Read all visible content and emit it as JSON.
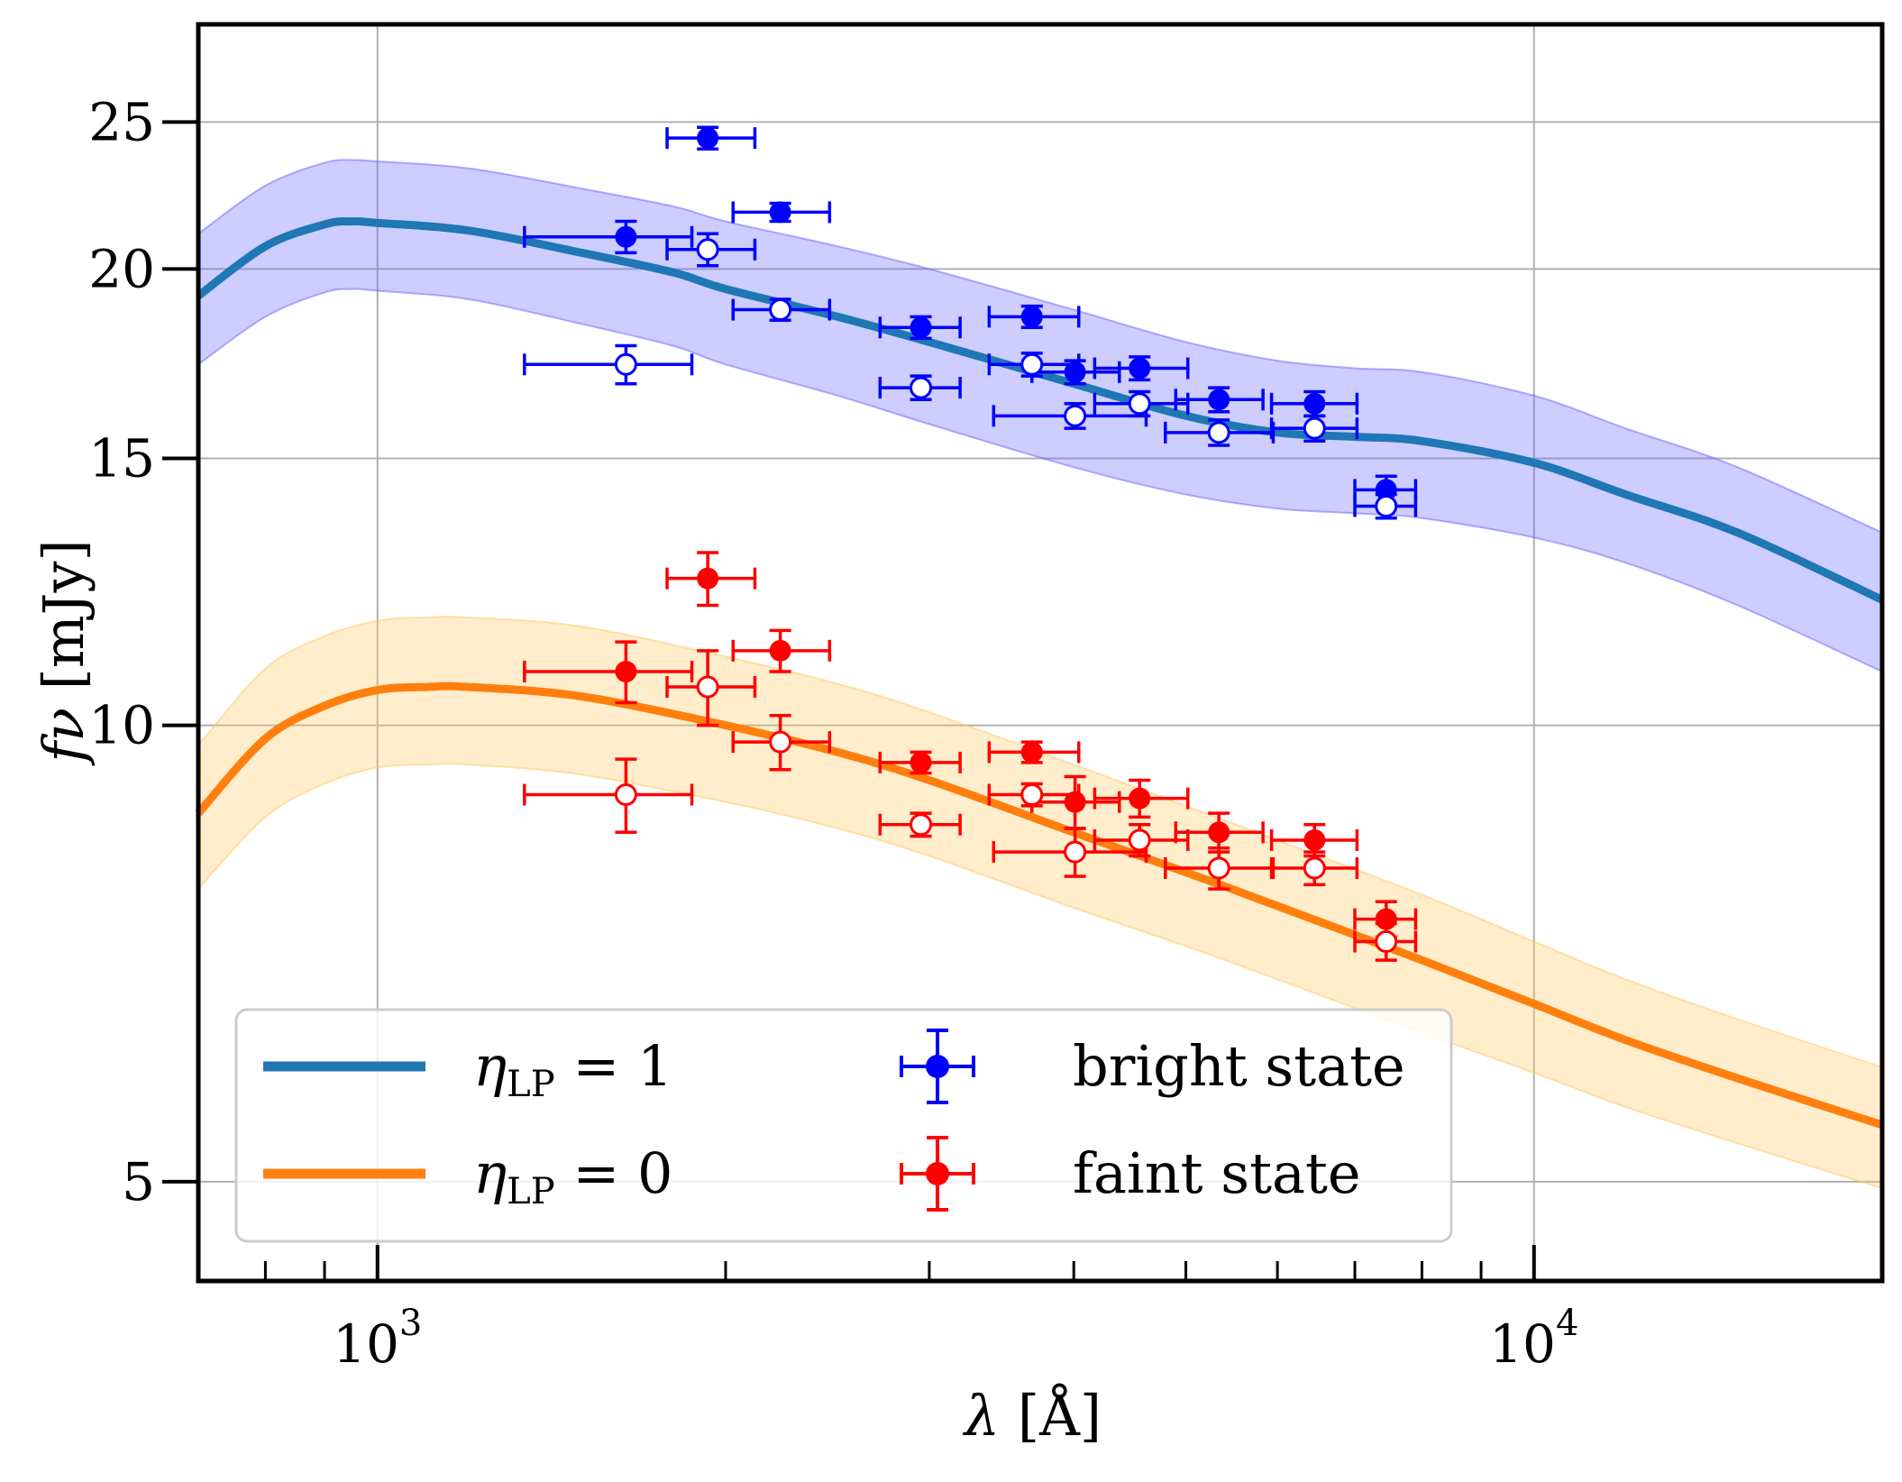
{
  "chart_data": {
    "type": "scatter",
    "x_scale": "log",
    "y_scale": "log",
    "xlim": [
      700,
      20000
    ],
    "ylim": [
      4.3,
      29
    ],
    "xlabel_symbol": "λ",
    "xlabel_unit": "[Å]",
    "ylabel_symbol": "fν",
    "ylabel_unit": "[mJy]",
    "grid": true,
    "legend_position": "lower-left",
    "x_ticks": [
      {
        "value": 1000,
        "base": "10",
        "exp": "3"
      },
      {
        "value": 10000,
        "base": "10",
        "exp": "4"
      }
    ],
    "x_minor_ticks": [
      700,
      800,
      900,
      2000,
      3000,
      4000,
      5000,
      6000,
      7000,
      8000,
      9000,
      20000
    ],
    "y_ticks": [
      {
        "value": 5,
        "label": "5"
      },
      {
        "value": 10,
        "label": "10"
      },
      {
        "value": 15,
        "label": "15"
      },
      {
        "value": 20,
        "label": "20"
      },
      {
        "value": 25,
        "label": "25"
      }
    ],
    "model_curves": [
      {
        "name": "ηLP = 1",
        "label_symbol": "η",
        "label_sub": "LP",
        "label_rest": " = 1",
        "color": "#1f77b4",
        "band_color": "#6666ff",
        "x": [
          700,
          800,
          900,
          950,
          1000,
          1200,
          1500,
          1800,
          2000,
          2500,
          3000,
          4000,
          5000,
          6000,
          7000,
          8000,
          10000,
          12000,
          15000,
          20000
        ],
        "y": [
          19.2,
          20.7,
          21.4,
          21.5,
          21.45,
          21.2,
          20.5,
          19.9,
          19.4,
          18.6,
          17.9,
          16.8,
          16.0,
          15.6,
          15.5,
          15.4,
          14.9,
          14.2,
          13.4,
          12.1
        ],
        "y_lo": [
          17.3,
          18.6,
          19.3,
          19.4,
          19.35,
          19.1,
          18.4,
          17.8,
          17.3,
          16.5,
          15.8,
          14.8,
          14.2,
          13.9,
          13.8,
          13.7,
          13.3,
          12.8,
          12.0,
          10.85
        ],
        "y_hi": [
          21.1,
          22.7,
          23.5,
          23.6,
          23.55,
          23.3,
          22.6,
          22.0,
          21.5,
          20.7,
          20.0,
          18.8,
          17.9,
          17.4,
          17.2,
          17.1,
          16.5,
          15.7,
          14.8,
          13.4
        ]
      },
      {
        "name": "ηLP = 0",
        "label_symbol": "η",
        "label_sub": "LP",
        "label_rest": " = 0",
        "color": "#ff7f0e",
        "band_color": "#ffc864",
        "x": [
          700,
          800,
          900,
          1000,
          1100,
          1200,
          1500,
          2000,
          2500,
          3000,
          4000,
          5000,
          6000,
          8000,
          10000,
          12000,
          15000,
          20000
        ],
        "y": [
          8.75,
          9.8,
          10.3,
          10.55,
          10.6,
          10.6,
          10.45,
          10.0,
          9.6,
          9.2,
          8.5,
          8.0,
          7.6,
          7.0,
          6.55,
          6.2,
          5.85,
          5.45
        ],
        "y_lo": [
          7.8,
          8.7,
          9.15,
          9.38,
          9.42,
          9.42,
          9.28,
          8.9,
          8.55,
          8.2,
          7.58,
          7.15,
          6.8,
          6.27,
          5.9,
          5.6,
          5.3,
          4.95
        ],
        "y_hi": [
          9.7,
          10.9,
          11.45,
          11.72,
          11.78,
          11.78,
          11.62,
          11.1,
          10.65,
          10.2,
          9.42,
          8.85,
          8.4,
          7.73,
          7.2,
          6.8,
          6.4,
          5.95
        ]
      }
    ],
    "observations": [
      {
        "name": "bright state",
        "color": "#0000ff",
        "filled": [
          {
            "x": 1640,
            "y": 21.0,
            "xerr": [
              1340,
              1870
            ],
            "yerr": [
              20.5,
              21.5
            ]
          },
          {
            "x": 1930,
            "y": 24.4,
            "xerr": [
              1780,
              2120
            ],
            "yerr": [
              24.0,
              24.8
            ]
          },
          {
            "x": 2230,
            "y": 21.8,
            "xerr": [
              2030,
              2460
            ],
            "yerr": [
              21.5,
              22.1
            ]
          },
          {
            "x": 2950,
            "y": 18.3,
            "xerr": [
              2720,
              3190
            ],
            "yerr": [
              18.0,
              18.6
            ]
          },
          {
            "x": 3680,
            "y": 18.6,
            "xerr": [
              3380,
              4040
            ],
            "yerr": [
              18.3,
              18.9
            ]
          },
          {
            "x": 4010,
            "y": 17.1,
            "xerr": [
              3680,
              4380
            ],
            "yerr": [
              16.8,
              17.4
            ]
          },
          {
            "x": 4560,
            "y": 17.2,
            "xerr": [
              4170,
              5020
            ],
            "yerr": [
              16.9,
              17.5
            ]
          },
          {
            "x": 5340,
            "y": 16.4,
            "xerr": [
              4900,
              5830
            ],
            "yerr": [
              16.1,
              16.7
            ]
          },
          {
            "x": 6460,
            "y": 16.3,
            "xerr": [
              5930,
              7030
            ],
            "yerr": [
              16.0,
              16.6
            ]
          },
          {
            "x": 7450,
            "y": 14.3,
            "xerr": [
              7000,
              7900
            ],
            "yerr": [
              14.0,
              14.6
            ]
          }
        ],
        "open": [
          {
            "x": 1640,
            "y": 17.3,
            "xerr": [
              1340,
              1870
            ],
            "yerr": [
              16.8,
              17.8
            ]
          },
          {
            "x": 1930,
            "y": 20.6,
            "xerr": [
              1780,
              2120
            ],
            "yerr": [
              20.1,
              21.1
            ]
          },
          {
            "x": 2230,
            "y": 18.8,
            "xerr": [
              2030,
              2460
            ],
            "yerr": [
              18.5,
              19.1
            ]
          },
          {
            "x": 2950,
            "y": 16.7,
            "xerr": [
              2720,
              3190
            ],
            "yerr": [
              16.4,
              17.0
            ]
          },
          {
            "x": 3680,
            "y": 17.3,
            "xerr": [
              3380,
              4040
            ],
            "yerr": [
              17.0,
              17.6
            ]
          },
          {
            "x": 4010,
            "y": 16.0,
            "xerr": [
              3410,
              4620
            ],
            "yerr": [
              15.7,
              16.3
            ]
          },
          {
            "x": 4560,
            "y": 16.3,
            "xerr": [
              4170,
              5020
            ],
            "yerr": [
              16.0,
              16.6
            ]
          },
          {
            "x": 5340,
            "y": 15.6,
            "xerr": [
              4800,
              5950
            ],
            "yerr": [
              15.3,
              15.9
            ]
          },
          {
            "x": 6460,
            "y": 15.7,
            "xerr": [
              5930,
              7030
            ],
            "yerr": [
              15.4,
              16.0
            ]
          },
          {
            "x": 7450,
            "y": 13.95,
            "xerr": [
              7000,
              7900
            ],
            "yerr": [
              13.7,
              14.2
            ]
          }
        ]
      },
      {
        "name": "faint state",
        "color": "#ff0000",
        "filled": [
          {
            "x": 1640,
            "y": 10.85,
            "xerr": [
              1340,
              1870
            ],
            "yerr": [
              10.35,
              11.35
            ]
          },
          {
            "x": 1930,
            "y": 12.5,
            "xerr": [
              1780,
              2120
            ],
            "yerr": [
              12.0,
              13.0
            ]
          },
          {
            "x": 2230,
            "y": 11.2,
            "xerr": [
              2030,
              2460
            ],
            "yerr": [
              10.85,
              11.55
            ]
          },
          {
            "x": 2950,
            "y": 9.45,
            "xerr": [
              2720,
              3190
            ],
            "yerr": [
              9.3,
              9.6
            ]
          },
          {
            "x": 3680,
            "y": 9.6,
            "xerr": [
              3380,
              4040
            ],
            "yerr": [
              9.45,
              9.75
            ]
          },
          {
            "x": 4010,
            "y": 8.9,
            "xerr": [
              3680,
              4380
            ],
            "yerr": [
              8.55,
              9.25
            ]
          },
          {
            "x": 4560,
            "y": 8.95,
            "xerr": [
              4170,
              5020
            ],
            "yerr": [
              8.7,
              9.2
            ]
          },
          {
            "x": 5340,
            "y": 8.5,
            "xerr": [
              4900,
              5830
            ],
            "yerr": [
              8.25,
              8.75
            ]
          },
          {
            "x": 6460,
            "y": 8.4,
            "xerr": [
              5930,
              7030
            ],
            "yerr": [
              8.2,
              8.6
            ]
          },
          {
            "x": 7450,
            "y": 7.45,
            "xerr": [
              7000,
              7900
            ],
            "yerr": [
              7.25,
              7.65
            ]
          }
        ],
        "open": [
          {
            "x": 1640,
            "y": 9.0,
            "xerr": [
              1340,
              1870
            ],
            "yerr": [
              8.5,
              9.5
            ]
          },
          {
            "x": 1930,
            "y": 10.6,
            "xerr": [
              1780,
              2120
            ],
            "yerr": [
              10.0,
              11.2
            ]
          },
          {
            "x": 2230,
            "y": 9.75,
            "xerr": [
              2030,
              2460
            ],
            "yerr": [
              9.35,
              10.15
            ]
          },
          {
            "x": 2950,
            "y": 8.6,
            "xerr": [
              2720,
              3190
            ],
            "yerr": [
              8.45,
              8.75
            ]
          },
          {
            "x": 3680,
            "y": 9.0,
            "xerr": [
              3380,
              4040
            ],
            "yerr": [
              8.85,
              9.15
            ]
          },
          {
            "x": 4010,
            "y": 8.25,
            "xerr": [
              3410,
              4620
            ],
            "yerr": [
              7.95,
              8.55
            ]
          },
          {
            "x": 4560,
            "y": 8.4,
            "xerr": [
              4170,
              5020
            ],
            "yerr": [
              8.2,
              8.6
            ]
          },
          {
            "x": 5340,
            "y": 8.05,
            "xerr": [
              4800,
              5950
            ],
            "yerr": [
              7.8,
              8.3
            ]
          },
          {
            "x": 6460,
            "y": 8.05,
            "xerr": [
              5930,
              7030
            ],
            "yerr": [
              7.85,
              8.25
            ]
          },
          {
            "x": 7450,
            "y": 7.2,
            "xerr": [
              7000,
              7900
            ],
            "yerr": [
              7.0,
              7.4
            ]
          }
        ]
      }
    ]
  }
}
